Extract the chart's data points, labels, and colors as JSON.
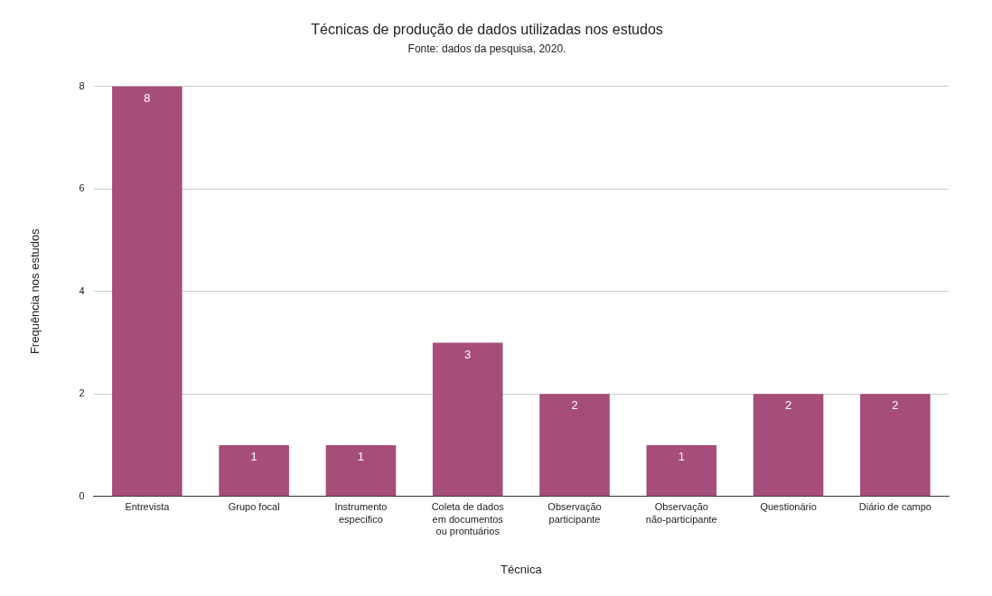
{
  "chart_data": {
    "type": "bar",
    "title": "Técnicas de produção de dados utilizadas nos estudos",
    "subtitle": "Fonte: dados da pesquisa, 2020.",
    "xlabel": "Técnica",
    "ylabel": "Frequência nos estudos",
    "categories": [
      "Entrevista",
      "Grupo focal",
      "Instrumento\nespecifico",
      "Coleta de dados\nem documentos\nou prontuários",
      "Observação\nparticipante",
      "Observação\nnão-participante",
      "Questionário",
      "Diário de campo"
    ],
    "values": [
      8,
      1,
      1,
      3,
      2,
      1,
      2,
      2
    ],
    "color": "#a64d79",
    "ylim": [
      0,
      8
    ],
    "yticks": [
      0,
      2,
      4,
      6,
      8
    ],
    "grid": "y",
    "data_labels": true,
    "legend": false
  }
}
